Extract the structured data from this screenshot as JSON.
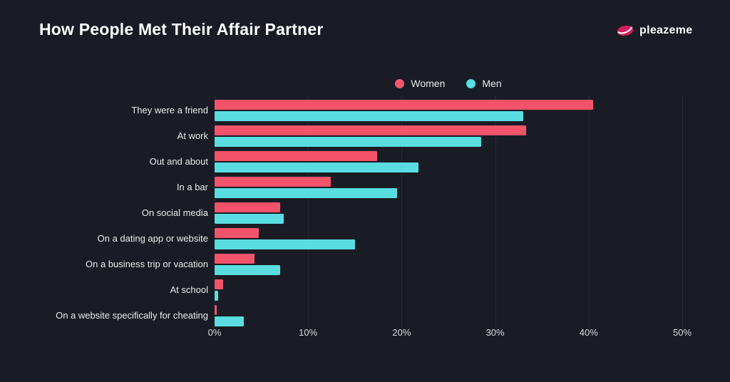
{
  "header": {
    "title": "How People Met Their Affair Partner",
    "brand": "pleazeme"
  },
  "colors": {
    "background": "#191c24",
    "women": "#f2536b",
    "men": "#5adde0",
    "grid": "#262a33",
    "title_text": "#ffffff",
    "label_text": "#e9eaec",
    "logo_pink": "#d81b5e"
  },
  "icons": {
    "brand_icon": "lips-icon"
  },
  "chart_data": {
    "type": "bar",
    "orientation": "horizontal",
    "title": "How People Met Their Affair Partner",
    "xlabel": "",
    "ylabel": "",
    "grid": true,
    "legend_position": "top-center",
    "xlim": [
      0,
      50
    ],
    "x_ticks": [
      "0%",
      "10%",
      "20%",
      "30%",
      "40%",
      "50%"
    ],
    "categories": [
      "They were a friend",
      "At work",
      "Out and about",
      "In a bar",
      "On social media",
      "On a dating app or website",
      "On a business trip or vacation",
      "At school",
      "On a website specifically for cheating"
    ],
    "series": [
      {
        "name": "Women",
        "color": "#f2536b",
        "values": [
          40.5,
          33.3,
          17.4,
          12.4,
          7.0,
          4.7,
          4.3,
          0.9,
          0.2
        ]
      },
      {
        "name": "Men",
        "color": "#5adde0",
        "values": [
          33.0,
          28.5,
          21.8,
          19.5,
          7.4,
          15.0,
          7.0,
          0.4,
          3.1
        ]
      }
    ]
  }
}
